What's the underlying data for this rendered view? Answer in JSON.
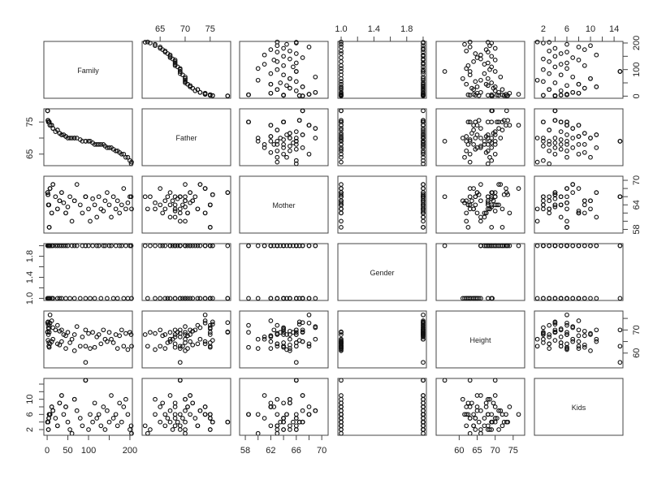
{
  "chart_data": {
    "type": "scatter",
    "subtype": "scatterplot-matrix",
    "grid": false,
    "variables": [
      "Family",
      "Father",
      "Mother",
      "Gender",
      "Height",
      "Kids"
    ],
    "ranges": {
      "Family": [
        -8,
        206
      ],
      "Father": [
        61.4,
        79.1
      ],
      "Mother": [
        57.1,
        71.0
      ],
      "Gender": [
        0.96,
        2.04
      ],
      "Height": [
        53.6,
        78.2
      ],
      "Kids": [
        0.5,
        15.5
      ]
    },
    "ticks": {
      "Family": {
        "at": [
          0,
          50,
          100,
          150,
          200
        ],
        "labels_bottom": [
          "0",
          "50",
          "100",
          "",
          "200"
        ],
        "labels_right": [
          "0",
          "",
          "100",
          "",
          "200"
        ]
      },
      "Father": {
        "at": [
          65,
          70,
          75
        ],
        "labels_top": [
          "65",
          "70",
          "75"
        ],
        "labels_left": [
          "65",
          "",
          "75"
        ]
      },
      "Mother": {
        "at": [
          58,
          60,
          62,
          64,
          66,
          68,
          70
        ],
        "labels_bottom": [
          "58",
          "",
          "62",
          "",
          "66",
          "",
          "70"
        ],
        "labels_right": [
          "58",
          "",
          "",
          "64",
          "",
          "",
          "70"
        ]
      },
      "Gender": {
        "at": [
          1.0,
          1.2,
          1.4,
          1.6,
          1.8,
          2.0
        ],
        "labels_top": [
          "1.0",
          "",
          "1.4",
          "",
          "1.8",
          ""
        ],
        "labels_left": [
          "1.0",
          "",
          "1.4",
          "",
          "1.8",
          ""
        ]
      },
      "Height": {
        "at": [
          60,
          65,
          70,
          75
        ],
        "labels_bottom": [
          "60",
          "65",
          "70",
          "75"
        ],
        "labels_right": [
          "60",
          "",
          "70",
          ""
        ]
      },
      "Kids": {
        "at": [
          2,
          4,
          6,
          8,
          10,
          12,
          14
        ],
        "labels_top": [
          "2",
          "",
          "6",
          "",
          "10",
          "",
          "14"
        ],
        "labels_left": [
          "2",
          "",
          "6",
          "",
          "10",
          "",
          ""
        ]
      }
    },
    "columns": [
      "Family",
      "Father",
      "Mother",
      "Gender",
      "Height",
      "Kids"
    ],
    "records": [
      [
        1,
        78.5,
        67.0,
        2,
        73.2,
        4
      ],
      [
        1,
        78.5,
        67.0,
        1,
        69.2,
        4
      ],
      [
        1,
        78.5,
        67.0,
        1,
        69.0,
        4
      ],
      [
        2,
        75.5,
        66.5,
        2,
        73.5,
        4
      ],
      [
        2,
        75.5,
        66.5,
        2,
        72.5,
        4
      ],
      [
        2,
        75.5,
        66.5,
        1,
        65.5,
        4
      ],
      [
        3,
        75.0,
        64.0,
        2,
        71.0,
        2
      ],
      [
        3,
        75.0,
        64.0,
        1,
        68.0,
        2
      ],
      [
        4,
        75.0,
        64.0,
        2,
        70.5,
        5
      ],
      [
        4,
        75.0,
        64.0,
        1,
        64.5,
        5
      ],
      [
        4,
        75.0,
        64.0,
        1,
        63.0,
        5
      ],
      [
        5,
        75.0,
        58.5,
        2,
        72.0,
        6
      ],
      [
        5,
        75.0,
        58.5,
        2,
        69.0,
        6
      ],
      [
        5,
        75.0,
        58.5,
        1,
        62.5,
        6
      ],
      [
        7,
        74.0,
        68.0,
        2,
        76.5,
        6
      ],
      [
        7,
        74.0,
        68.0,
        2,
        73.0,
        6
      ],
      [
        7,
        74.0,
        68.0,
        1,
        64.0,
        6
      ],
      [
        11,
        74.0,
        62.0,
        2,
        74.0,
        8
      ],
      [
        11,
        74.0,
        62.0,
        1,
        65.0,
        8
      ],
      [
        14,
        73.0,
        69.0,
        2,
        71.0,
        7
      ],
      [
        14,
        73.0,
        69.0,
        1,
        66.0,
        7
      ],
      [
        20,
        72.0,
        66.0,
        2,
        70.0,
        5
      ],
      [
        25,
        72.5,
        63.0,
        2,
        72.0,
        3
      ],
      [
        25,
        72.5,
        63.0,
        1,
        64.0,
        3
      ],
      [
        30,
        71.5,
        65.0,
        2,
        69.5,
        9
      ],
      [
        30,
        71.5,
        65.0,
        1,
        63.5,
        9
      ],
      [
        35,
        71.0,
        67.0,
        2,
        70.0,
        11
      ],
      [
        35,
        71.0,
        67.0,
        1,
        65.0,
        11
      ],
      [
        40,
        71.0,
        64.5,
        2,
        68.0,
        6
      ],
      [
        45,
        70.5,
        62.0,
        2,
        67.5,
        8
      ],
      [
        45,
        70.5,
        62.0,
        1,
        62.0,
        8
      ],
      [
        50,
        70.0,
        63.5,
        2,
        69.0,
        4
      ],
      [
        55,
        70.0,
        66.0,
        1,
        64.5,
        2
      ],
      [
        60,
        70.0,
        60.0,
        2,
        66.0,
        1
      ],
      [
        66,
        70.0,
        65.0,
        2,
        68.0,
        10
      ],
      [
        66,
        70.0,
        65.0,
        1,
        61.0,
        10
      ],
      [
        72,
        70.0,
        69.0,
        2,
        71.5,
        7
      ],
      [
        80,
        69.5,
        64.0,
        1,
        63.0,
        5
      ],
      [
        85,
        69.0,
        62.0,
        2,
        67.0,
        3
      ],
      [
        93,
        69.0,
        66.0,
        2,
        70.0,
        15
      ],
      [
        93,
        69.0,
        66.0,
        1,
        63.0,
        15
      ],
      [
        93,
        69.0,
        66.0,
        2,
        56.0,
        15
      ],
      [
        100,
        69.0,
        63.0,
        2,
        68.5,
        2
      ],
      [
        104,
        69.0,
        60.0,
        1,
        62.0,
        6
      ],
      [
        110,
        68.5,
        65.5,
        2,
        69.0,
        4
      ],
      [
        115,
        68.0,
        64.0,
        1,
        62.5,
        9
      ],
      [
        120,
        68.0,
        61.0,
        2,
        67.0,
        5
      ],
      [
        125,
        68.0,
        66.0,
        2,
        68.0,
        6
      ],
      [
        130,
        68.0,
        63.0,
        1,
        64.0,
        3
      ],
      [
        136,
        68.0,
        62.5,
        2,
        70.0,
        8
      ],
      [
        140,
        67.5,
        65.0,
        2,
        66.0,
        2
      ],
      [
        145,
        67.0,
        67.0,
        1,
        65.0,
        7
      ],
      [
        150,
        67.0,
        64.0,
        2,
        69.0,
        4
      ],
      [
        155,
        67.0,
        61.0,
        2,
        66.0,
        11
      ],
      [
        160,
        66.5,
        66.0,
        1,
        64.5,
        5
      ],
      [
        166,
        66.0,
        63.0,
        2,
        68.0,
        6
      ],
      [
        170,
        66.0,
        65.0,
        1,
        62.0,
        3
      ],
      [
        175,
        65.5,
        62.0,
        2,
        67.5,
        9
      ],
      [
        180,
        65.0,
        64.0,
        2,
        70.0,
        4
      ],
      [
        185,
        65.0,
        68.0,
        1,
        63.0,
        8
      ],
      [
        190,
        64.0,
        63.0,
        2,
        68.5,
        10
      ],
      [
        195,
        64.0,
        64.5,
        1,
        61.5,
        6
      ],
      [
        200,
        63.0,
        66.0,
        2,
        69.0,
        2
      ],
      [
        203,
        62.0,
        66.0,
        2,
        68.0,
        3
      ],
      [
        204,
        62.5,
        63.0,
        1,
        63.0,
        1
      ]
    ]
  }
}
